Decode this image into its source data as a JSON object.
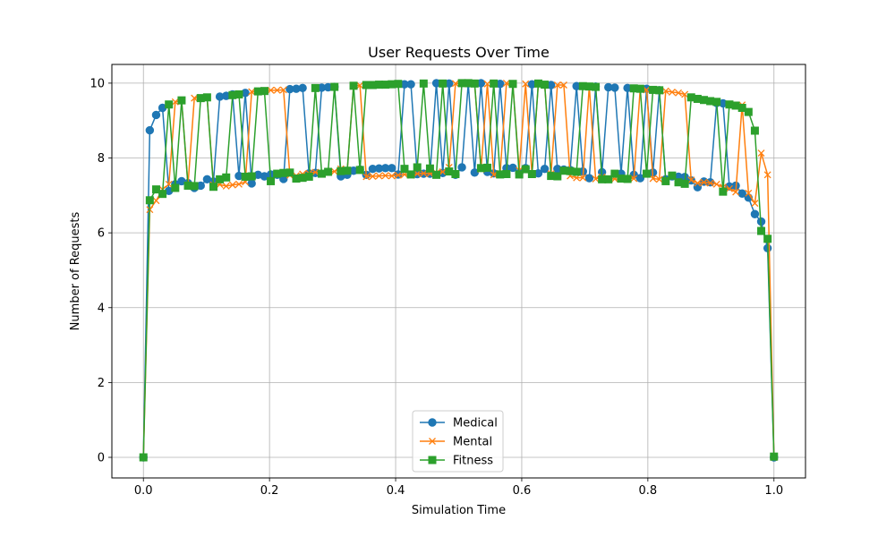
{
  "chart_data": {
    "type": "line",
    "title": "User Requests Over Time",
    "xlabel": "Simulation Time",
    "ylabel": "Number of Requests",
    "xlim": [
      -0.05,
      1.05
    ],
    "ylim": [
      -0.55,
      10.5
    ],
    "xticks": [
      0.0,
      0.2,
      0.4,
      0.6,
      0.8,
      1.0
    ],
    "xtick_labels": [
      "0.0",
      "0.2",
      "0.4",
      "0.6",
      "0.8",
      "1.0"
    ],
    "yticks": [
      0,
      2,
      4,
      6,
      8,
      10
    ],
    "ytick_labels": [
      "0",
      "2",
      "4",
      "6",
      "8",
      "10"
    ],
    "grid": true,
    "legend": "bottom-center",
    "x": [
      0.0,
      0.0101,
      0.0202,
      0.0303,
      0.0404,
      0.0505,
      0.0606,
      0.0707,
      0.0808,
      0.0909,
      0.101,
      0.1111,
      0.1212,
      0.1313,
      0.1414,
      0.1515,
      0.1616,
      0.1717,
      0.1818,
      0.1919,
      0.202,
      0.2121,
      0.2222,
      0.2323,
      0.2424,
      0.2525,
      0.2626,
      0.2727,
      0.2828,
      0.2929,
      0.303,
      0.3131,
      0.3232,
      0.3333,
      0.3434,
      0.3535,
      0.3636,
      0.3737,
      0.3838,
      0.3939,
      0.404,
      0.4141,
      0.4242,
      0.4343,
      0.4444,
      0.4545,
      0.4646,
      0.4747,
      0.4848,
      0.4949,
      0.5051,
      0.5152,
      0.5253,
      0.5354,
      0.5455,
      0.5556,
      0.5657,
      0.5758,
      0.5859,
      0.596,
      0.6061,
      0.6162,
      0.6263,
      0.6364,
      0.6465,
      0.6566,
      0.6667,
      0.6768,
      0.6869,
      0.697,
      0.7071,
      0.7172,
      0.7273,
      0.7374,
      0.7475,
      0.7576,
      0.7677,
      0.7778,
      0.7879,
      0.798,
      0.8081,
      0.8182,
      0.8283,
      0.8384,
      0.8485,
      0.8586,
      0.8687,
      0.8788,
      0.8889,
      0.899,
      0.9091,
      0.9192,
      0.9293,
      0.9394,
      0.9495,
      0.9596,
      0.9697,
      0.9798,
      0.9899,
      1.0
    ],
    "series": [
      {
        "name": "Medical",
        "color": "#1f77b4",
        "marker": "circle",
        "values": [
          0,
          8.74,
          9.15,
          9.34,
          7.12,
          7.3,
          7.38,
          7.33,
          7.2,
          7.26,
          7.43,
          7.37,
          9.64,
          9.66,
          9.7,
          7.52,
          9.74,
          7.32,
          7.55,
          7.51,
          7.56,
          7.55,
          7.44,
          9.84,
          9.85,
          9.87,
          7.59,
          7.6,
          9.88,
          9.89,
          9.9,
          7.51,
          7.55,
          7.66,
          7.69,
          7.55,
          7.71,
          7.72,
          7.73,
          7.73,
          7.56,
          9.97,
          9.97,
          7.57,
          7.58,
          7.58,
          10.0,
          7.6,
          9.99,
          7.55,
          7.75,
          9.99,
          7.61,
          10.0,
          7.63,
          7.59,
          9.98,
          7.73,
          7.74,
          7.6,
          7.73,
          9.97,
          7.59,
          7.71,
          9.95,
          7.71,
          7.69,
          7.68,
          9.92,
          7.64,
          7.46,
          9.91,
          7.62,
          9.89,
          9.88,
          7.58,
          9.87,
          7.55,
          7.46,
          9.85,
          7.61,
          9.81,
          7.43,
          7.51,
          7.5,
          7.49,
          7.4,
          7.22,
          7.37,
          7.35,
          9.47,
          9.46,
          7.24,
          7.26,
          7.05,
          6.94,
          6.5,
          6.3,
          5.59,
          0
        ]
      },
      {
        "name": "Mental",
        "color": "#ff7f0e",
        "marker": "x",
        "values": [
          0,
          6.62,
          6.86,
          7.16,
          7.3,
          9.5,
          9.53,
          7.28,
          9.6,
          9.62,
          9.63,
          7.28,
          7.29,
          7.25,
          7.28,
          7.3,
          7.36,
          9.77,
          9.78,
          9.8,
          9.81,
          9.81,
          9.82,
          7.54,
          7.53,
          7.57,
          7.59,
          7.62,
          7.59,
          7.63,
          7.64,
          7.71,
          7.65,
          9.93,
          9.94,
          7.5,
          7.51,
          7.52,
          7.53,
          7.52,
          7.54,
          7.56,
          7.54,
          7.58,
          7.59,
          7.58,
          7.6,
          7.63,
          7.75,
          9.99,
          10.0,
          9.98,
          9.99,
          7.7,
          9.98,
          7.55,
          7.59,
          10.0,
          9.97,
          7.67,
          9.98,
          7.57,
          9.97,
          9.97,
          7.58,
          9.95,
          9.95,
          7.52,
          7.47,
          7.47,
          9.91,
          7.44,
          7.49,
          7.45,
          7.44,
          7.43,
          7.47,
          7.45,
          9.85,
          9.82,
          7.45,
          7.43,
          9.79,
          9.76,
          9.74,
          9.7,
          7.41,
          7.33,
          7.35,
          7.33,
          7.3,
          7.22,
          7.18,
          7.09,
          9.42,
          7.06,
          6.79,
          8.13,
          7.55,
          0
        ]
      },
      {
        "name": "Fitness",
        "color": "#2ca02c",
        "marker": "square",
        "values": [
          0,
          6.87,
          7.16,
          7.04,
          9.43,
          7.2,
          9.54,
          7.26,
          7.25,
          9.6,
          9.62,
          7.23,
          7.43,
          7.48,
          9.68,
          9.7,
          7.5,
          7.51,
          9.78,
          9.79,
          7.38,
          7.58,
          7.6,
          7.61,
          7.45,
          7.47,
          7.5,
          9.87,
          7.58,
          7.63,
          9.9,
          7.65,
          7.66,
          9.93,
          7.68,
          9.95,
          9.95,
          9.96,
          9.96,
          9.97,
          9.98,
          7.71,
          7.56,
          7.75,
          9.99,
          7.72,
          7.55,
          9.99,
          7.64,
          7.57,
          10.0,
          10.0,
          9.99,
          7.73,
          7.74,
          9.99,
          7.56,
          7.57,
          9.98,
          7.56,
          7.7,
          7.57,
          9.99,
          9.96,
          7.52,
          7.51,
          7.66,
          7.65,
          7.63,
          9.92,
          9.91,
          9.9,
          7.43,
          7.43,
          7.58,
          7.45,
          7.44,
          9.86,
          9.85,
          7.58,
          9.82,
          9.81,
          7.38,
          7.53,
          7.35,
          7.31,
          9.62,
          9.58,
          9.55,
          9.52,
          9.5,
          7.1,
          9.43,
          9.4,
          9.34,
          9.23,
          8.73,
          6.05,
          5.84,
          0.02
        ]
      }
    ]
  }
}
